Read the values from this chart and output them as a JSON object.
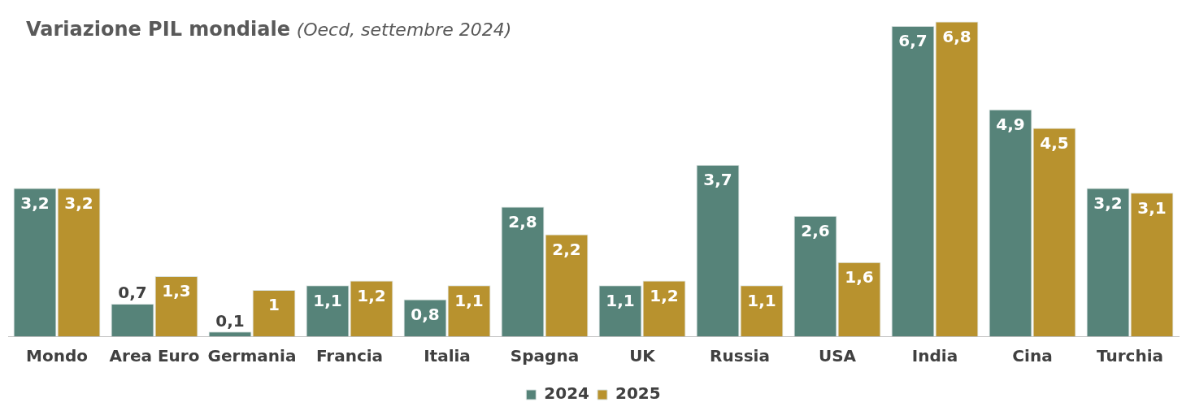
{
  "chart_data": {
    "type": "bar",
    "title": "Variazione PIL mondiale",
    "subtitle": "(Oecd, settembre 2024)",
    "categories": [
      "Mondo",
      "Area Euro",
      "Germania",
      "Francia",
      "Italia",
      "Spagna",
      "UK",
      "Russia",
      "USA",
      "India",
      "Cina",
      "Turchia"
    ],
    "series": [
      {
        "name": "2024",
        "color": "#568379",
        "values": [
          3.2,
          0.7,
          0.1,
          1.1,
          0.8,
          2.8,
          1.1,
          3.7,
          2.6,
          6.7,
          4.9,
          3.2
        ],
        "value_labels": [
          "3,2",
          "0,7",
          "0,1",
          "1,1",
          "0,8",
          "2,8",
          "1,1",
          "3,7",
          "2,6",
          "6,7",
          "4,9",
          "3,2"
        ]
      },
      {
        "name": "2025",
        "color": "#b8922e",
        "values": [
          3.2,
          1.3,
          1,
          1.2,
          1.1,
          2.2,
          1.2,
          1.1,
          1.6,
          6.8,
          4.5,
          3.1
        ],
        "value_labels": [
          "3,2",
          "1,3",
          "1",
          "1,2",
          "1,1",
          "2,2",
          "1,2",
          "1,1",
          "1,6",
          "6,8",
          "4,5",
          "3,1"
        ]
      }
    ],
    "grid": false,
    "legend": "bottom"
  }
}
